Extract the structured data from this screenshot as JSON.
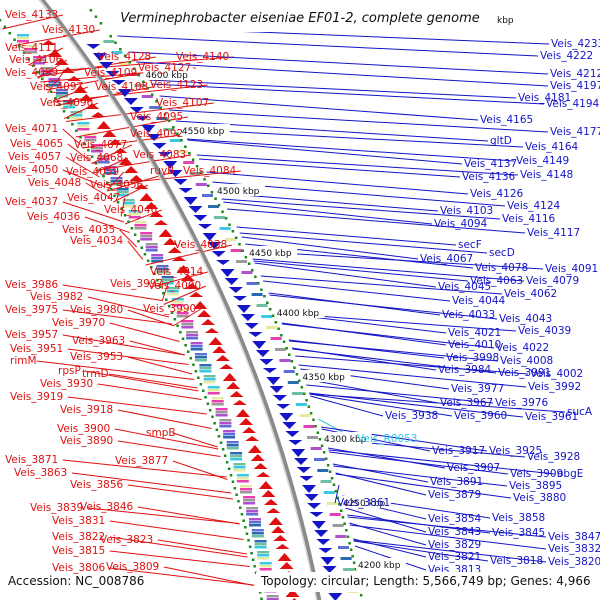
{
  "title": "Verminephrobacter eiseniae EF01-2, complete genome",
  "accession": "Accession: NC_008786",
  "topology": "Topology: circular; Length: 5,566,749 bp; Genes: 4,966",
  "kbp_marks": [
    "4600 kbp",
    "4550 kbp",
    "4500 kbp",
    "4450 kbp",
    "4400 kbp",
    "4350 kbp",
    "4300 kbp",
    "4250 kbp",
    "4200 kbp"
  ],
  "kbp_partial": "kbp",
  "left_labels": [
    "Veis_4133",
    "Veis_4130",
    "Veis_4111",
    "Veis_4106",
    "Veis_4099",
    "Veis_4097",
    "Veis_4096",
    "Veis_4109",
    "Veis_4108",
    "Veis_4128",
    "Veis_4127",
    "Veis_4140",
    "Veis_4123",
    "Veis_4107",
    "Veis_4095",
    "Veis_4092",
    "Veis_4071",
    "Veis_4065",
    "Veis_4077",
    "Veis_4057",
    "Veis_4068",
    "Veis_4083",
    "Veis_4050",
    "Veis_4059",
    "ruvB",
    "Veis_4084",
    "Veis_4048",
    "Veis_4056",
    "Veis_4047",
    "Veis_4037",
    "Veis_4046",
    "Veis_4036",
    "Veis_4035",
    "Veis_4034",
    "Veis_4038",
    "Veis_4014",
    "Veis_3986",
    "Veis_3997",
    "Veis_4000",
    "Veis_3982",
    "Veis_3975",
    "Veis_3980",
    "Veis_3990",
    "Veis_3970",
    "Veis_3957",
    "Veis_3963",
    "Veis_3951",
    "Veis_3953",
    "rimM",
    "rpsP",
    "trmD",
    "Veis_3930",
    "Veis_3919",
    "Veis_3918",
    "Veis_3900",
    "smpB",
    "Veis_3890",
    "Veis_3871",
    "Veis_3877",
    "Veis_3863",
    "Veis_3856",
    "Veis_3839",
    "Veis_3846",
    "Veis_3831",
    "Veis_3822",
    "Veis_3823",
    "Veis_3815",
    "Veis_3806",
    "Veis_3809"
  ],
  "right_labels": [
    "Veis_4233",
    "Veis_4222",
    "Veis_4212",
    "Veis_4197",
    "Veis_4181",
    "Veis_4194",
    "Veis_4177",
    "Veis_4165",
    "Veis_4164",
    "gltD",
    "Veis_4149",
    "Veis_4137",
    "Veis_4136",
    "Veis_4148",
    "Veis_4126",
    "Veis_4124",
    "Veis_4103",
    "Veis_4116",
    "Veis_4094",
    "Veis_4117",
    "secF",
    "secD",
    "Veis_4067",
    "Veis_4078",
    "Veis_4091",
    "Veis_4063",
    "Veis_4079",
    "Veis_4045",
    "Veis_4062",
    "Veis_4044",
    "Veis_4033",
    "Veis_4043",
    "Veis_4039",
    "Veis_4021",
    "Veis_4010",
    "Veis_4022",
    "Veis_3998",
    "Veis_4008",
    "Veis_3984",
    "Veis_3991",
    "Veis_4002",
    "Veis_3977",
    "Veis_3992",
    "Veis_3967",
    "Veis_3976",
    "Veis_3938",
    "Veis_3960",
    "Veis_3961",
    "sucA",
    "Veis_R0053",
    "Veis_3917",
    "Veis_3925",
    "Veis_3928",
    "Veis_3907",
    "Veis_3909",
    "obgE",
    "Veis_3891",
    "Veis_3895",
    "Veis_3879",
    "Veis_3880",
    "Veis_3861",
    "Veis_3854",
    "Veis_3858",
    "Veis_3843",
    "Veis_3845",
    "Veis_3847",
    "Veis_3829",
    "Veis_3832",
    "Veis_3821",
    "Veis_3818",
    "Veis_3820",
    "Veis_3813"
  ],
  "colors": {
    "forward": "#e01010",
    "reverse": "#1414c8",
    "rna": "#33c8e6",
    "backbone": "#8a8a8a"
  }
}
